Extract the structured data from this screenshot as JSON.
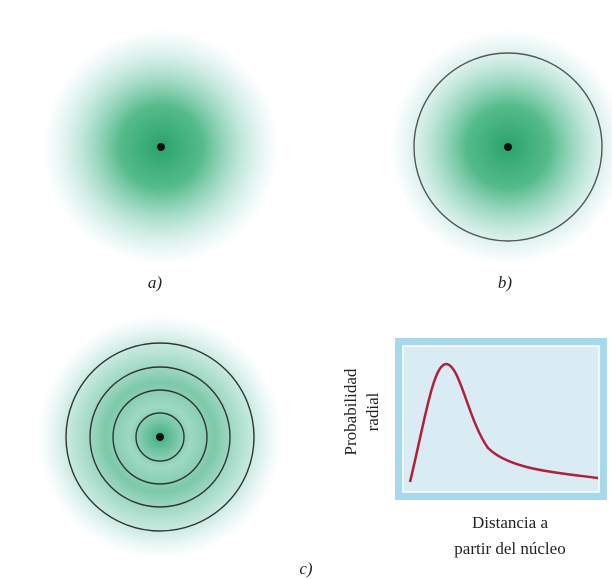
{
  "panels": [
    {
      "label": "a)"
    },
    {
      "label": "b)"
    },
    {
      "label": "c)"
    }
  ],
  "plot": {
    "y_label": [
      "Probabilidad",
      "radial"
    ],
    "x_label": [
      "Distancia a",
      "partir del núcleo"
    ]
  }
}
